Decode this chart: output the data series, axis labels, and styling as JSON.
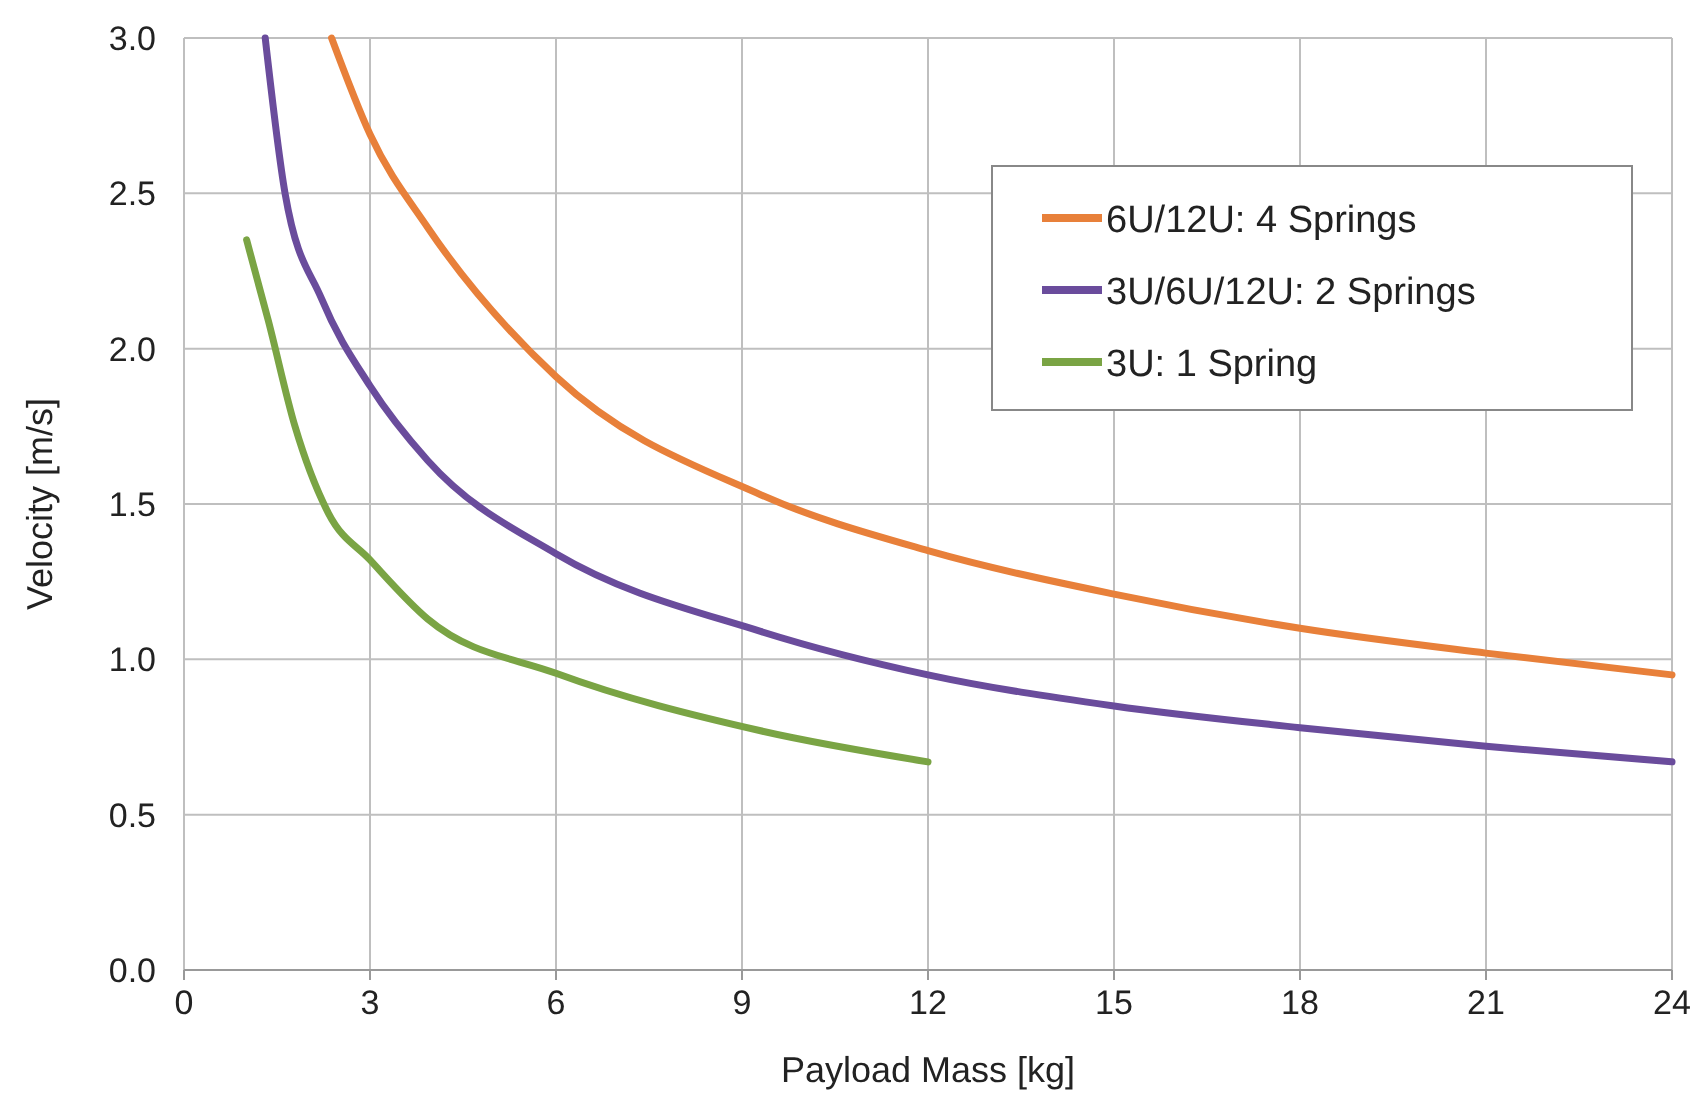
{
  "chart_data": {
    "type": "line",
    "xlabel": "Payload Mass [kg]",
    "ylabel": "Velocity [m/s]",
    "xlim": [
      0,
      24
    ],
    "ylim": [
      0,
      3
    ],
    "xticks": [
      0,
      3,
      6,
      9,
      12,
      15,
      18,
      21,
      24
    ],
    "yticks": [
      {
        "value": 0,
        "label": "0.0"
      },
      {
        "value": 0.5,
        "label": "0.5"
      },
      {
        "value": 1,
        "label": "1.0"
      },
      {
        "value": 1.5,
        "label": "1.5"
      },
      {
        "value": 2,
        "label": "2.0"
      },
      {
        "value": 2.5,
        "label": "2.5"
      },
      {
        "value": 3,
        "label": "3.0"
      }
    ],
    "grid": true,
    "legend": "top right",
    "marker": "none",
    "line_style": "solid",
    "series": [
      {
        "name": "6U/12U: 4 Springs",
        "color": "#e8803a",
        "x": [
          2.38,
          3,
          3.93,
          6,
          9.3,
          12,
          15,
          18,
          21,
          24
        ],
        "values": [
          3,
          2.69,
          2.39,
          1.91,
          1.53,
          1.35,
          1.21,
          1.1,
          1.02,
          0.95
        ]
      },
      {
        "name": "3U/6U/12U: 2 Springs",
        "color": "#6a4c9c",
        "x": [
          1.31,
          1.63,
          2.22,
          3,
          3.93,
          6,
          9.3,
          12,
          15,
          18,
          21,
          24
        ],
        "values": [
          3,
          2.5,
          2.16,
          1.88,
          1.64,
          1.34,
          1.09,
          0.95,
          0.85,
          0.78,
          0.72,
          0.67
        ]
      },
      {
        "name": "3U: 1 Spring",
        "color": "#7aa444",
        "x": [
          1.01,
          1.36,
          1.79,
          2.33,
          3,
          3.93,
          6,
          9.3,
          12
        ],
        "values": [
          2.35,
          2.09,
          1.75,
          1.47,
          1.32,
          1.13,
          0.955,
          0.77,
          0.67
        ]
      }
    ]
  }
}
